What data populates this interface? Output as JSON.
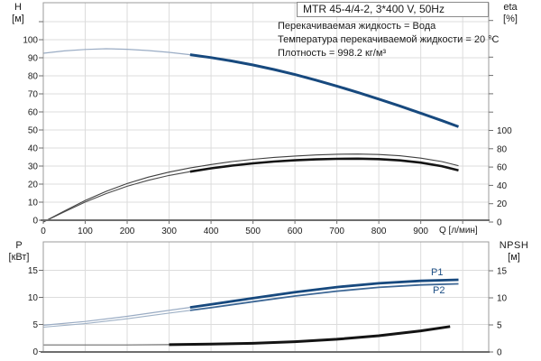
{
  "title_box": "MTR 45-4/4-2, 3*400 V, 50Hz",
  "info_lines": [
    "Перекачиваемая жидкость = Вода",
    "Температура перекачиваемой жидкости = 20 °C",
    "Плотность = 998.2 кг/м³"
  ],
  "colors": {
    "curve_blue": "#17497e",
    "curve_blue_thin": "#9aacc4",
    "curve_steel": "#3d6795",
    "curve_steel_thin": "#9fb1c6",
    "curve_black": "#141414",
    "curve_black_thin": "#4a4a4a",
    "npsh_thin": "#6e6e6e",
    "grid": "#dcdcdc",
    "border": "#9b9b9b",
    "axis": "#6e6e6e",
    "tick_text": "#1a1a1a",
    "series_label": "#1d4f85"
  },
  "chart_data": [
    {
      "id": "top",
      "type": "line",
      "grid": true,
      "x_axis": {
        "label": "Q [л/мин]",
        "range": [
          0,
          1062
        ],
        "ticks": [
          0,
          100,
          200,
          300,
          400,
          500,
          600,
          700,
          800,
          900
        ]
      },
      "left_axis": {
        "label": "H",
        "unit": "[м]",
        "range": [
          0,
          120
        ],
        "ticks": [
          100,
          90,
          80,
          70,
          60,
          50,
          40,
          30,
          20,
          10,
          0
        ]
      },
      "right_axis": {
        "label": "eta",
        "unit": "[%]",
        "range": [
          0,
          100
        ],
        "ticks": [
          100,
          80,
          60,
          40,
          20,
          0
        ]
      },
      "series": [
        {
          "name": "H",
          "axis": "left",
          "color": "#17497e",
          "thin_color": "#9aacc4",
          "thick_range": [
            350,
            990
          ],
          "points": [
            [
              0,
              92.5
            ],
            [
              50,
              93.8
            ],
            [
              100,
              94.6
            ],
            [
              150,
              95.0
            ],
            [
              200,
              94.7
            ],
            [
              250,
              94.0
            ],
            [
              300,
              93.0
            ],
            [
              350,
              91.7
            ],
            [
              400,
              90.1
            ],
            [
              450,
              88.2
            ],
            [
              500,
              86.0
            ],
            [
              550,
              83.5
            ],
            [
              600,
              80.7
            ],
            [
              650,
              77.6
            ],
            [
              700,
              74.3
            ],
            [
              750,
              70.8
            ],
            [
              800,
              67.1
            ],
            [
              850,
              63.3
            ],
            [
              900,
              59.3
            ],
            [
              950,
              55.2
            ],
            [
              990,
              51.8
            ]
          ]
        },
        {
          "name": "eta_pump",
          "axis": "right",
          "color": "#3f3f3f",
          "points": [
            [
              0,
              0
            ],
            [
              50,
              12
            ],
            [
              100,
              23.5
            ],
            [
              150,
              33.5
            ],
            [
              200,
              42
            ],
            [
              250,
              49
            ],
            [
              300,
              54.5
            ],
            [
              350,
              59
            ],
            [
              400,
              62.8
            ],
            [
              450,
              66
            ],
            [
              500,
              68.5
            ],
            [
              550,
              70.5
            ],
            [
              600,
              72
            ],
            [
              650,
              73.2
            ],
            [
              700,
              74
            ],
            [
              750,
              74.2
            ],
            [
              800,
              73.7
            ],
            [
              850,
              72.3
            ],
            [
              900,
              69.8
            ],
            [
              950,
              66
            ],
            [
              990,
              61.5
            ]
          ]
        },
        {
          "name": "eta_total",
          "axis": "right",
          "color": "#141414",
          "thin_color": "#4a4a4a",
          "thick_range": [
            350,
            990
          ],
          "points": [
            [
              0,
              0
            ],
            [
              50,
              11
            ],
            [
              100,
              21.8
            ],
            [
              150,
              31
            ],
            [
              200,
              39
            ],
            [
              250,
              45.5
            ],
            [
              300,
              50.8
            ],
            [
              350,
              55
            ],
            [
              400,
              58.6
            ],
            [
              450,
              61.6
            ],
            [
              500,
              64
            ],
            [
              550,
              66
            ],
            [
              600,
              67.4
            ],
            [
              650,
              68.4
            ],
            [
              700,
              69
            ],
            [
              750,
              69.2
            ],
            [
              800,
              68.7
            ],
            [
              850,
              67.3
            ],
            [
              900,
              64.8
            ],
            [
              950,
              61
            ],
            [
              990,
              56.5
            ]
          ]
        }
      ]
    },
    {
      "id": "bottom",
      "type": "line",
      "grid": true,
      "x_axis": {
        "label": "",
        "range": [
          0,
          1062
        ],
        "ticks": []
      },
      "left_axis": {
        "label": "P",
        "unit": "[кВт]",
        "range": [
          0,
          20
        ],
        "ticks": [
          15,
          10,
          5,
          0
        ]
      },
      "right_axis": {
        "label": "NPSH",
        "unit": "[м]",
        "range": [
          0,
          15
        ],
        "ticks": [
          15,
          10,
          5,
          0
        ]
      },
      "series": [
        {
          "name": "P1",
          "label": "P1",
          "axis": "left",
          "color": "#17497e",
          "thin_color": "#9aacc4",
          "thick_range": [
            350,
            990
          ],
          "points": [
            [
              0,
              4.85
            ],
            [
              100,
              5.55
            ],
            [
              200,
              6.5
            ],
            [
              300,
              7.6
            ],
            [
              350,
              8.15
            ],
            [
              400,
              8.7
            ],
            [
              500,
              9.85
            ],
            [
              600,
              10.95
            ],
            [
              700,
              11.9
            ],
            [
              800,
              12.6
            ],
            [
              900,
              13.05
            ],
            [
              990,
              13.25
            ]
          ]
        },
        {
          "name": "P2",
          "label": "P2",
          "axis": "left",
          "color": "#3d6795",
          "thin_color": "#9fb1c6",
          "thick_range": [
            350,
            990
          ],
          "points": [
            [
              0,
              4.5
            ],
            [
              100,
              5.15
            ],
            [
              200,
              6.05
            ],
            [
              300,
              7.1
            ],
            [
              350,
              7.6
            ],
            [
              400,
              8.1
            ],
            [
              500,
              9.2
            ],
            [
              600,
              10.25
            ],
            [
              700,
              11.15
            ],
            [
              800,
              11.85
            ],
            [
              900,
              12.3
            ],
            [
              990,
              12.5
            ]
          ]
        },
        {
          "name": "NPSH",
          "axis": "right",
          "color": "#141414",
          "thin_color": "#6e6e6e",
          "thick_range": [
            300,
            970
          ],
          "points": [
            [
              0,
              1.3
            ],
            [
              100,
              1.3
            ],
            [
              200,
              1.3
            ],
            [
              300,
              1.35
            ],
            [
              400,
              1.45
            ],
            [
              500,
              1.6
            ],
            [
              600,
              1.9
            ],
            [
              700,
              2.35
            ],
            [
              800,
              3.0
            ],
            [
              900,
              3.9
            ],
            [
              970,
              4.7
            ]
          ]
        }
      ]
    }
  ]
}
